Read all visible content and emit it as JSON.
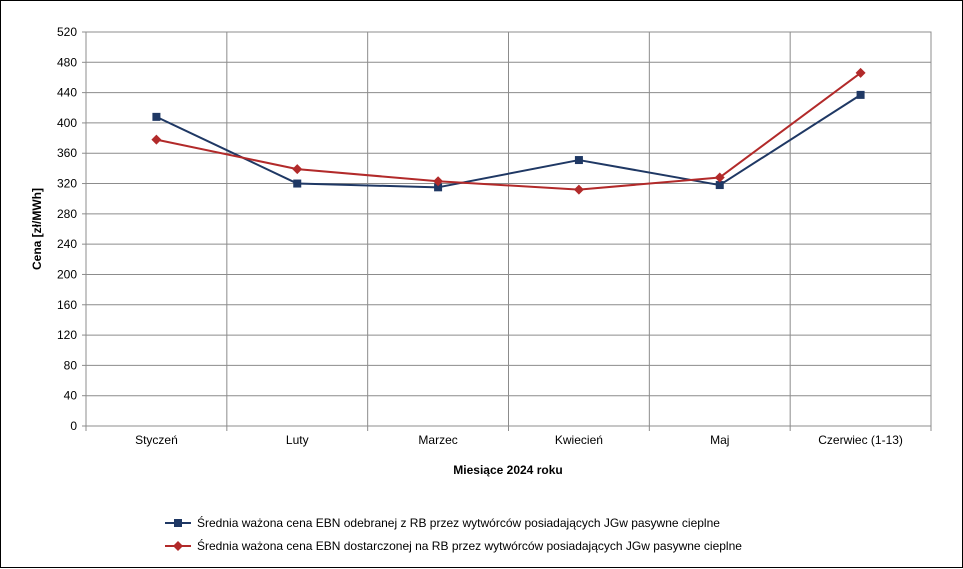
{
  "chart_data": {
    "type": "line",
    "title": "",
    "xlabel": "Miesiące 2024  roku",
    "ylabel": "Cena [zł/MWh]",
    "categories": [
      "Styczeń",
      "Luty",
      "Marzec",
      "Kwiecień",
      "Maj",
      "Czerwiec (1-13)"
    ],
    "ylim": [
      0,
      520
    ],
    "yticks": [
      0,
      40,
      80,
      120,
      160,
      200,
      240,
      280,
      320,
      360,
      400,
      440,
      480,
      520
    ],
    "grid": true,
    "legend_position": "bottom",
    "series": [
      {
        "name": "Średnia ważona cena EBN odebranej z RB przez wytwórców posiadających JGw pasywne cieplne",
        "values": [
          408,
          320,
          315,
          351,
          318,
          437
        ],
        "color": "#1f3864",
        "marker": "square"
      },
      {
        "name": "Średnia ważona cena EBN dostarczonej na RB przez wytwórców posiadających JGw pasywne cieplne",
        "values": [
          378,
          339,
          323,
          312,
          328,
          466
        ],
        "color": "#b22a2a",
        "marker": "diamond"
      }
    ]
  }
}
